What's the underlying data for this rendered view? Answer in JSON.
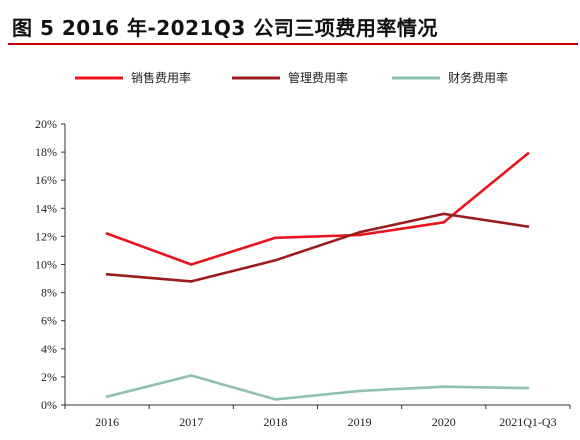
{
  "figure": {
    "title": "图 5 2016 年-2021Q3 公司三项费用率情况",
    "rule_color": "#c00000"
  },
  "chart_data": {
    "type": "line",
    "categories": [
      "2016",
      "2017",
      "2018",
      "2019",
      "2020",
      "2021Q1-Q3"
    ],
    "ylim": [
      0,
      20
    ],
    "y_ticks": [
      0,
      2,
      4,
      6,
      8,
      10,
      12,
      14,
      16,
      18,
      20
    ],
    "y_tick_suffix": "%",
    "grid": false,
    "legend_position": "top",
    "series": [
      {
        "name": "销售费用率",
        "color": "#e8141e",
        "values": [
          12.2,
          10.0,
          11.9,
          12.1,
          13.0,
          17.9
        ]
      },
      {
        "name": "管理费用率",
        "color": "#9b1c1c",
        "values": [
          9.3,
          8.8,
          10.3,
          12.3,
          13.6,
          12.7
        ]
      },
      {
        "name": "财务费用率",
        "color": "#8fc1b2",
        "values": [
          0.6,
          2.1,
          0.4,
          1.0,
          1.3,
          1.2
        ]
      }
    ]
  }
}
